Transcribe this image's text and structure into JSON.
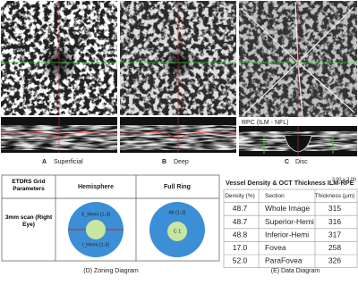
{
  "panels": {
    "a": {
      "letter": "A",
      "label": "Superficial"
    },
    "b": {
      "letter": "B",
      "label": "Deep"
    },
    "c": {
      "letter": "C",
      "label": "Disc",
      "overlay": "RPC (ILM - NFL)"
    }
  },
  "zoning": {
    "headers": [
      "ETDRS Grid Parameters",
      "Hemisphere",
      "Full Ring"
    ],
    "row_label": "3mm scan (Right Eye)",
    "hemi_labels": [
      "S_Hemi (1-3)",
      "I_Hemi (1-3)"
    ],
    "ring_labels": [
      "All (1-3)",
      "C 1"
    ],
    "caption": "(D) Zoning Diagram"
  },
  "data_table": {
    "title": "Vessel Density & OCT Thickness ILM-RPE",
    "scan": "3.00 x 3.00",
    "headers": [
      "Density (%)",
      "Section",
      "Thickness (μm)"
    ],
    "rows": [
      [
        "48.7",
        "Whole Image",
        "315"
      ],
      [
        "48.7",
        "Superior-Hemi",
        "316"
      ],
      [
        "48.8",
        "Inferior-Hemi",
        "317"
      ],
      [
        "17.0",
        "Fovea",
        "258"
      ],
      [
        "52.0",
        "ParaFovea",
        "326"
      ]
    ],
    "caption": "(E) Data Diagram"
  }
}
